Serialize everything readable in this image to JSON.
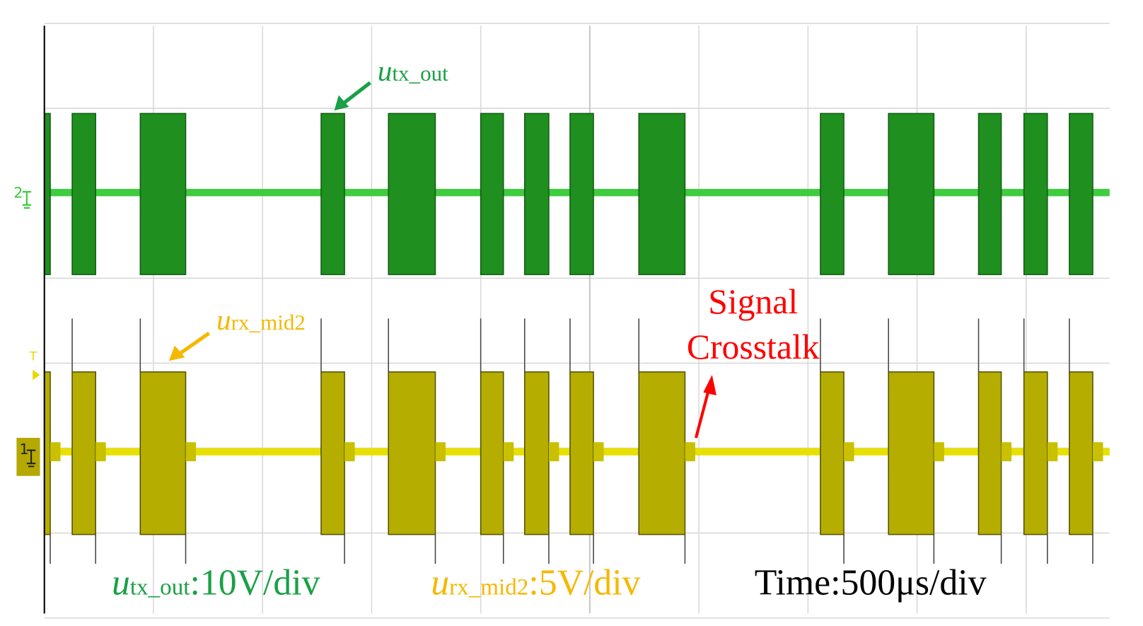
{
  "annotations": {
    "tx": {
      "symbol": "u",
      "subscript": "tx_out"
    },
    "rx": {
      "symbol": "u",
      "subscript": "rx_mid2"
    },
    "crosstalk": [
      "Signal",
      "Crosstalk"
    ]
  },
  "channel_markers": [
    "2",
    "1",
    "T"
  ],
  "scales": [
    {
      "symbol": "u",
      "subscript": "tx_out",
      "setting": ":10V/div"
    },
    {
      "symbol": "u",
      "subscript": "rx_mid2",
      "setting": ":5V/div"
    },
    {
      "setting": "Time:500μs/div"
    }
  ]
}
